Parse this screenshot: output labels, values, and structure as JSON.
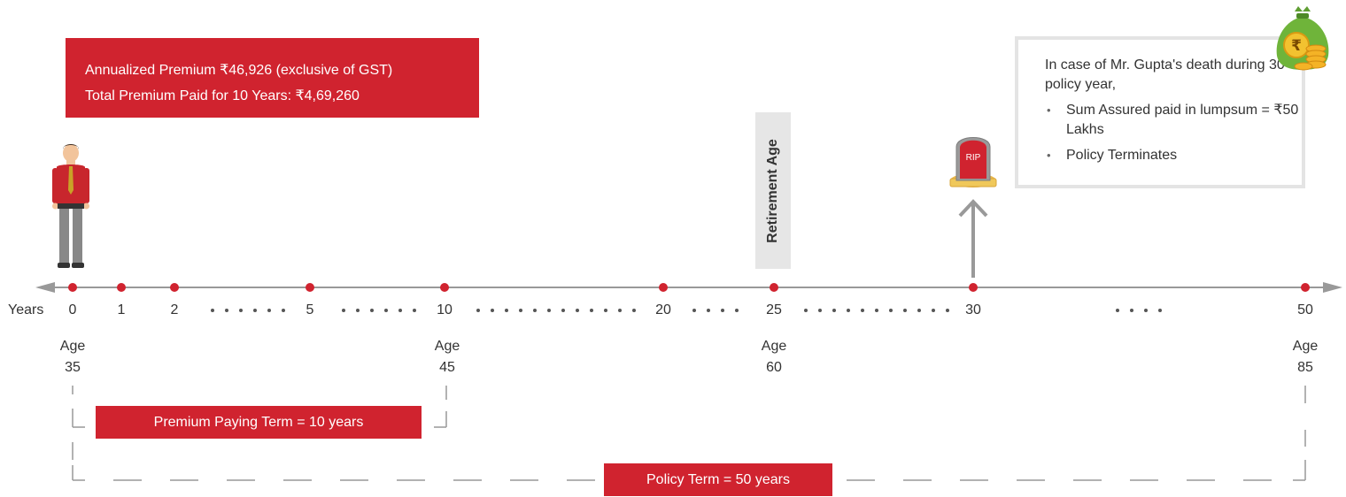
{
  "premium": {
    "line1": "Annualized Premium ₹46,926 (exclusive of GST)",
    "line2": "Total Premium Paid for 10 Years: ₹4,69,260"
  },
  "death_box": {
    "intro_pre": "In case of Mr. Gupta's death during 30",
    "intro_sup": "th",
    "intro_post": " policy year,",
    "bullets": [
      "Sum Assured paid in lumpsum = ₹50 Lakhs",
      "Policy Terminates"
    ]
  },
  "retirement_label": "Retirement Age",
  "tombstone_text": "RIP",
  "money_bag_symbol": "₹",
  "timeline": {
    "axis_label": "Years",
    "points": [
      "0",
      "1",
      "2",
      "5",
      "10",
      "20",
      "25",
      "30",
      "50"
    ],
    "ages": [
      {
        "label": "Age",
        "value": "35"
      },
      {
        "label": "Age",
        "value": "45"
      },
      {
        "label": "Age",
        "value": "60"
      },
      {
        "label": "Age",
        "value": "85"
      }
    ]
  },
  "premium_paying_term": "Premium Paying Term = 10 years",
  "policy_term": "Policy Term = 50 years",
  "colors": {
    "red": "#d0232f",
    "grey_line": "#999999",
    "dot": "#d0232f",
    "box_border": "#e4e4e4"
  }
}
